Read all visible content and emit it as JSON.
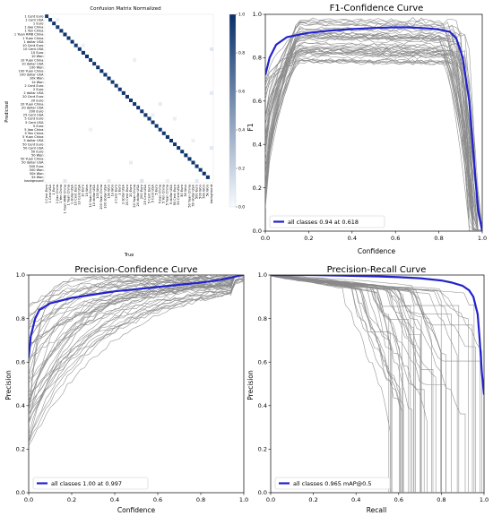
{
  "chart_data": [
    {
      "type": "heatmap",
      "title": "Confusion Matrix Normalized",
      "xlabel": "True",
      "ylabel": "Predicted",
      "colorbar_ticks": [
        "0.0",
        "0.2",
        "0.4",
        "0.6",
        "0.8",
        "1.0"
      ],
      "clim": [
        0,
        1
      ],
      "colormap": [
        "#f7fbff",
        "#08306b"
      ],
      "labels": [
        "1 Cent Euro",
        "1 Cent USA",
        "1 Euro",
        "1 Jiao China",
        "1 Yen China",
        "1 Yuan RMB China",
        "1 Yuan China",
        "1 dollar USA",
        "10 Cent Euro",
        "10 Cent USA",
        "10 Euro",
        "10 Won",
        "10 Yuan China",
        "10 dollar USA",
        "100 Won",
        "100 Yuan China",
        "100 dollar USA",
        "10k Won",
        "1k Won",
        "2 Cent Euro",
        "2 Euro",
        "2 dollar USA",
        "20 Cent Euro",
        "20 Euro",
        "20 Yuan China",
        "20 dollar USA",
        "200 Euro",
        "25 Cent USA",
        "5 Cent Euro",
        "5 Cent USA",
        "5 Euro",
        "5 Jiao China",
        "5 Yen China",
        "5 Yuan China",
        "5 dollar USA",
        "50 Cent Euro",
        "50 Cent USA",
        "50 Euro",
        "50 Won",
        "50 Yuan China",
        "50 dollar USA",
        "500 Euro",
        "500 Won",
        "50k Won",
        "5k Won",
        "background"
      ],
      "diagonal": [
        0.95,
        0.97,
        0.98,
        0.93,
        0.96,
        0.99,
        0.97,
        0.98,
        0.94,
        0.97,
        0.98,
        0.99,
        0.96,
        0.97,
        0.98,
        0.99,
        0.97,
        0.98,
        0.96,
        0.95,
        0.97,
        0.98,
        0.96,
        0.97,
        0.98,
        0.99,
        0.97,
        0.96,
        0.95,
        0.97,
        0.98,
        0.96,
        0.97,
        0.98,
        0.97,
        0.96,
        0.98,
        0.97,
        0.99,
        0.98,
        0.97,
        0.96,
        0.98,
        0.99,
        0.97,
        0.0
      ],
      "off_diagonal": [
        {
          "true": 3,
          "pred": 1,
          "value": 0.05
        },
        {
          "true": 10,
          "pred": 8,
          "value": 0.04
        },
        {
          "true": 24,
          "pred": 12,
          "value": 0.06
        },
        {
          "true": 31,
          "pred": 24,
          "value": 0.08
        },
        {
          "true": 29,
          "pred": 27,
          "value": 0.05
        },
        {
          "true": 35,
          "pred": 28,
          "value": 0.06
        },
        {
          "true": 40,
          "pred": 34,
          "value": 0.05
        },
        {
          "true": 23,
          "pred": 40,
          "value": 0.07
        },
        {
          "true": 12,
          "pred": 31,
          "value": 0.05
        },
        {
          "true": 5,
          "pred": 45,
          "value": 0.1
        },
        {
          "true": 17,
          "pred": 45,
          "value": 0.08
        },
        {
          "true": 26,
          "pred": 45,
          "value": 0.12
        },
        {
          "true": 33,
          "pred": 45,
          "value": 0.06
        },
        {
          "true": 41,
          "pred": 45,
          "value": 0.09
        },
        {
          "true": 45,
          "pred": 9,
          "value": 0.1
        },
        {
          "true": 45,
          "pred": 21,
          "value": 0.08
        },
        {
          "true": 45,
          "pred": 36,
          "value": 0.09
        }
      ]
    },
    {
      "type": "line",
      "title": "F1-Confidence Curve",
      "xlabel": "Confidence",
      "ylabel": "F1",
      "xlim": [
        0,
        1
      ],
      "ylim": [
        0,
        1
      ],
      "xticks": [
        "0.0",
        "0.2",
        "0.4",
        "0.6",
        "0.8",
        "1.0"
      ],
      "yticks": [
        "0.0",
        "0.2",
        "0.4",
        "0.6",
        "0.8",
        "1.0"
      ],
      "legend": "all classes 0.94 at 0.618",
      "legend_position": "lower-left",
      "highlight_color": "#2222cc",
      "class_color": "#8a8a8a",
      "series": [
        {
          "x": [
            0,
            0.02,
            0.05,
            0.1,
            0.2,
            0.3,
            0.4,
            0.5,
            0.6,
            0.65,
            0.7,
            0.75,
            0.8,
            0.85,
            0.88,
            0.91,
            0.94,
            0.96,
            0.98,
            1.0
          ],
          "y": [
            0.72,
            0.8,
            0.86,
            0.895,
            0.915,
            0.925,
            0.932,
            0.937,
            0.94,
            0.94,
            0.938,
            0.935,
            0.93,
            0.92,
            0.89,
            0.8,
            0.6,
            0.35,
            0.1,
            0.0
          ]
        }
      ]
    },
    {
      "type": "line",
      "title": "Precision-Confidence Curve",
      "xlabel": "Confidence",
      "ylabel": "Precision",
      "xlim": [
        0,
        1
      ],
      "ylim": [
        0,
        1
      ],
      "xticks": [
        "0.0",
        "0.2",
        "0.4",
        "0.6",
        "0.8",
        "1.0"
      ],
      "yticks": [
        "0.0",
        "0.2",
        "0.4",
        "0.6",
        "0.8",
        "1.0"
      ],
      "legend": "all classes 1.00 at 0.997",
      "legend_position": "lower-left",
      "highlight_color": "#2222cc",
      "class_color": "#8a8a8a",
      "series": [
        {
          "x": [
            0,
            0.01,
            0.03,
            0.05,
            0.1,
            0.2,
            0.3,
            0.4,
            0.5,
            0.6,
            0.7,
            0.8,
            0.85,
            0.9,
            0.95,
            0.99,
            1.0
          ],
          "y": [
            0.62,
            0.72,
            0.8,
            0.84,
            0.87,
            0.895,
            0.91,
            0.925,
            0.935,
            0.945,
            0.955,
            0.965,
            0.972,
            0.98,
            0.99,
            1.0,
            1.0
          ]
        }
      ]
    },
    {
      "type": "line",
      "title": "Precision-Recall Curve",
      "xlabel": "Recall",
      "ylabel": "Precision",
      "xlim": [
        0,
        1
      ],
      "ylim": [
        0,
        1
      ],
      "xticks": [
        "0.0",
        "0.2",
        "0.4",
        "0.6",
        "0.8",
        "1.0"
      ],
      "yticks": [
        "0.0",
        "0.2",
        "0.4",
        "0.6",
        "0.8",
        "1.0"
      ],
      "legend": "all classes 0.965 mAP@0.5",
      "legend_position": "lower-left",
      "highlight_color": "#2222cc",
      "class_color": "#8a8a8a",
      "series": [
        {
          "x": [
            0,
            0.1,
            0.2,
            0.3,
            0.4,
            0.5,
            0.6,
            0.7,
            0.8,
            0.85,
            0.9,
            0.93,
            0.95,
            0.97,
            0.98,
            0.99,
            1.0
          ],
          "y": [
            1.0,
            1.0,
            1.0,
            0.998,
            0.996,
            0.994,
            0.99,
            0.985,
            0.975,
            0.965,
            0.95,
            0.93,
            0.9,
            0.82,
            0.7,
            0.55,
            0.45
          ]
        }
      ]
    }
  ]
}
